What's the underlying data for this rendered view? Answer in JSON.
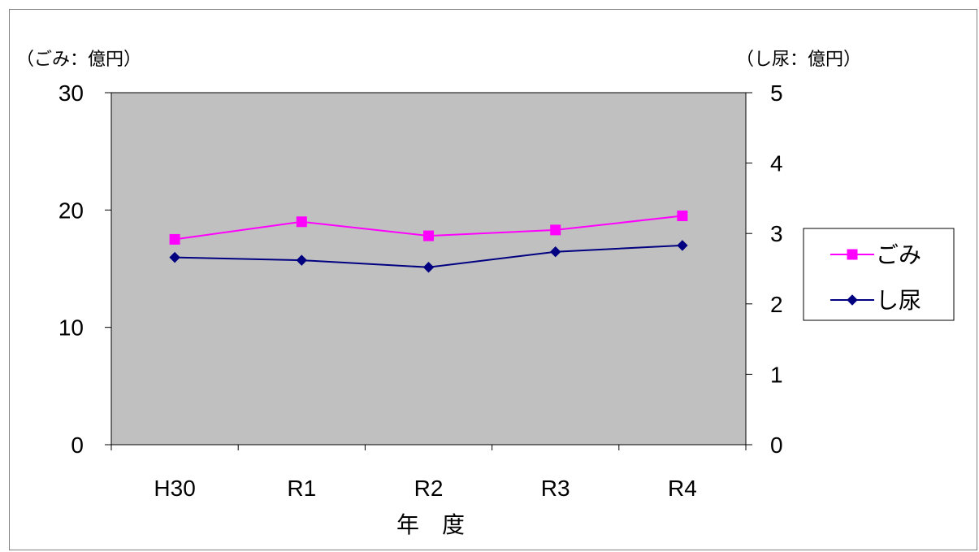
{
  "chart_data": {
    "type": "line",
    "categories": [
      "H30",
      "R1",
      "R2",
      "R3",
      "R4"
    ],
    "xlabel": "年　度",
    "y_left": {
      "unit_label": "（ごみ：億円）",
      "ylim": [
        0,
        30
      ],
      "ticks": [
        0,
        10,
        20,
        30
      ]
    },
    "y_right": {
      "unit_label": "（し尿：億円）",
      "ylim": [
        0,
        5
      ],
      "ticks": [
        0,
        1,
        2,
        3,
        4,
        5
      ]
    },
    "series": [
      {
        "name": "ごみ",
        "axis": "left",
        "values": [
          17.5,
          19.0,
          17.8,
          18.3,
          19.5
        ],
        "color": "#ff00ff",
        "marker": "square"
      },
      {
        "name": "し尿",
        "axis": "right",
        "values": [
          2.66,
          2.62,
          2.52,
          2.74,
          2.83
        ],
        "color": "#000080",
        "marker": "diamond"
      }
    ],
    "plot_background": "#c0c0c0",
    "grid": false,
    "legend_position": "right"
  }
}
